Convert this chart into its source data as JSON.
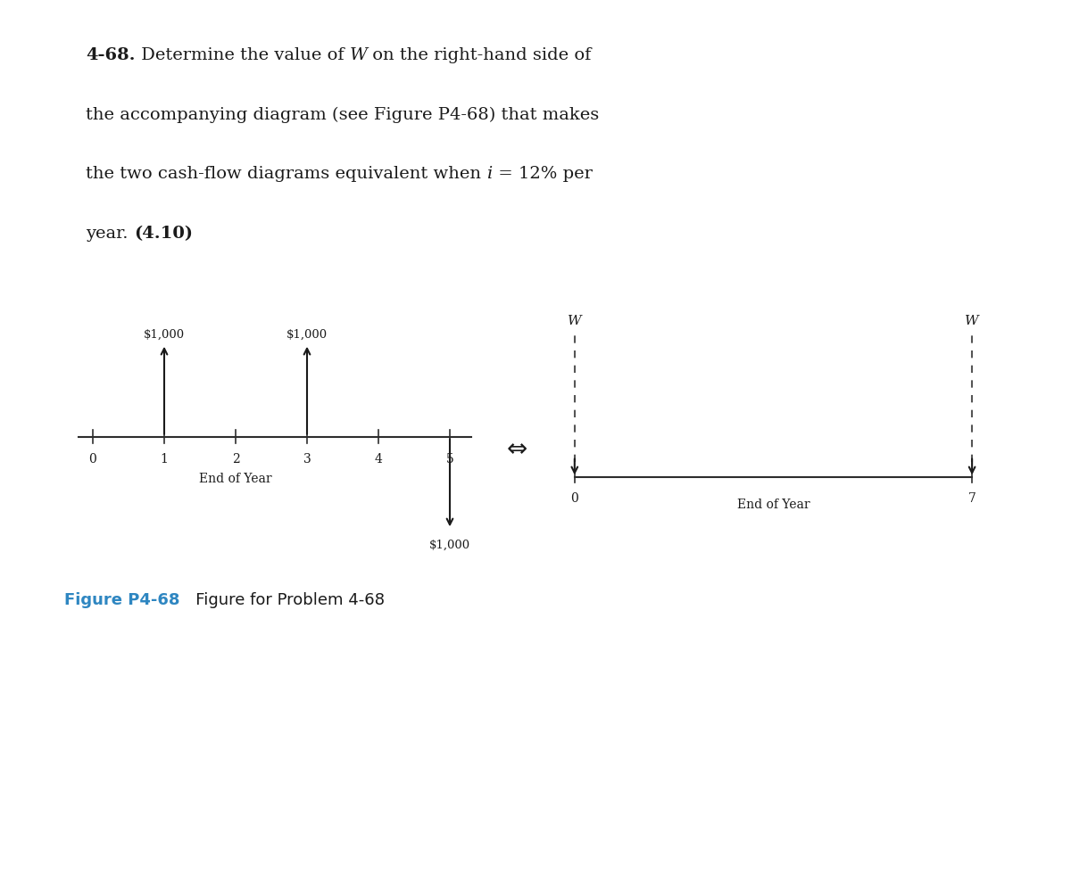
{
  "fig_label_blue": "Figure P4-68",
  "fig_label_rest": "   Figure for Problem 4-68",
  "background_color": "#ffffff",
  "axis_color": "#2d2d2d",
  "arrow_color": "#1a1a1a",
  "dashed_color": "#555555",
  "left_diagram": {
    "ticks": [
      0,
      1,
      2,
      3,
      4,
      5
    ],
    "up_arrows": [
      {
        "x": 1,
        "label": "$1,000"
      },
      {
        "x": 3,
        "label": "$1,000"
      }
    ],
    "down_arrows": [
      {
        "x": 5,
        "label": "$1,000"
      }
    ],
    "xlabel": "End of Year"
  },
  "right_diagram": {
    "ticks": [
      0,
      7
    ],
    "dashed_arrows": [
      {
        "x": 0,
        "label": "W"
      },
      {
        "x": 7,
        "label": "W"
      }
    ],
    "xlabel": "End of Year"
  },
  "equiv_symbol": "⇔",
  "title_lines": [
    [
      [
        "4-68.",
        "bold",
        14
      ],
      [
        " Determine the value of ",
        "normal",
        14
      ],
      [
        "W",
        "italic",
        14
      ],
      [
        " on the right-hand side of",
        "normal",
        14
      ]
    ],
    [
      [
        "the accompanying diagram (see Figure P4-68) that makes",
        "normal",
        14
      ]
    ],
    [
      [
        "the two cash-flow diagrams equivalent when ",
        "normal",
        14
      ],
      [
        "i",
        "italic",
        14
      ],
      [
        " = 12% per",
        "normal",
        14
      ]
    ],
    [
      [
        "year. ",
        "normal",
        14
      ],
      [
        "(4.10)",
        "bold",
        14
      ]
    ]
  ]
}
